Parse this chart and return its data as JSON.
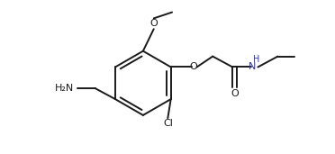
{
  "bg_color": "#ffffff",
  "line_color": "#1a1a1a",
  "nh_color": "#3333bb",
  "lw": 1.4,
  "fig_width": 3.72,
  "fig_height": 1.71,
  "dpi": 100,
  "xlim": [
    0.0,
    10.0
  ],
  "ylim": [
    0.0,
    5.0
  ]
}
